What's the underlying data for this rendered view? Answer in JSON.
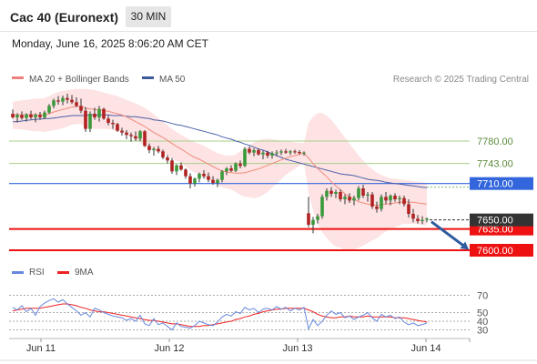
{
  "header": {
    "title": "Cac 40 (Euronext)",
    "interval": "30 MIN",
    "datetime": "Monday, June 16, 2025 8:06:20 AM CET"
  },
  "legend": {
    "items": [
      {
        "name": "MA 20 + Bollinger Bands",
        "color": "#f08080"
      },
      {
        "name": "MA 50",
        "color": "#3a5a9a"
      }
    ],
    "credit": "Research © 2025 Trading Central"
  },
  "colors": {
    "bull": "#3a9a3a",
    "bear": "#b22222",
    "ma20": "#f08a7a",
    "ma50": "#4a5ea8",
    "bands": "#fde3e3",
    "support": "#ee1111",
    "pivot": "#3366dd",
    "resistance": "#a8d08a",
    "arrow": "#2f5c9e",
    "rsi": "#6688dd",
    "rsi_ma": "#ee2222"
  },
  "chart_data": [
    {
      "type": "candlestick",
      "x_ticks": [
        "Jun 11",
        "Jun 12",
        "Jun 13",
        "Jun 14"
      ],
      "ylim": [
        7582,
        7882
      ],
      "levels": [
        {
          "value": 7780.0,
          "label": "7780.00",
          "kind": "resistance"
        },
        {
          "value": 7743.0,
          "label": "7743.00",
          "kind": "resistance"
        },
        {
          "value": 7710.0,
          "label": "7710.00",
          "kind": "pivot"
        },
        {
          "value": 7635.0,
          "label": "7635.00",
          "kind": "support"
        },
        {
          "value": 7600.0,
          "label": "7600.00",
          "kind": "support"
        }
      ],
      "last_price": {
        "value": 7650.0,
        "label": "7650.00"
      },
      "candles": [
        [
          7825,
          7832,
          7817,
          7819
        ],
        [
          7819,
          7826,
          7811,
          7823
        ],
        [
          7823,
          7829,
          7815,
          7818
        ],
        [
          7818,
          7826,
          7812,
          7824
        ],
        [
          7824,
          7830,
          7816,
          7819
        ],
        [
          7819,
          7826,
          7811,
          7823
        ],
        [
          7823,
          7828,
          7815,
          7819
        ],
        [
          7819,
          7830,
          7816,
          7827
        ],
        [
          7827,
          7841,
          7825,
          7838
        ],
        [
          7838,
          7850,
          7834,
          7847
        ],
        [
          7847,
          7854,
          7840,
          7845
        ],
        [
          7845,
          7855,
          7839,
          7851
        ],
        [
          7851,
          7858,
          7842,
          7848
        ],
        [
          7848,
          7856,
          7841,
          7844
        ],
        [
          7844,
          7852,
          7836,
          7838
        ],
        [
          7838,
          7850,
          7826,
          7830
        ],
        [
          7830,
          7836,
          7795,
          7800
        ],
        [
          7800,
          7829,
          7795,
          7825
        ],
        [
          7825,
          7835,
          7815,
          7819
        ],
        [
          7819,
          7838,
          7812,
          7833
        ],
        [
          7833,
          7835,
          7815,
          7817
        ],
        [
          7817,
          7822,
          7806,
          7810
        ],
        [
          7810,
          7815,
          7800,
          7808
        ],
        [
          7808,
          7810,
          7795,
          7797
        ],
        [
          7797,
          7802,
          7789,
          7794
        ],
        [
          7794,
          7798,
          7783,
          7790
        ],
        [
          7790,
          7794,
          7779,
          7788
        ],
        [
          7788,
          7796,
          7780,
          7784
        ],
        [
          7784,
          7798,
          7780,
          7796
        ],
        [
          7796,
          7798,
          7770,
          7772
        ],
        [
          7772,
          7776,
          7760,
          7765
        ],
        [
          7765,
          7770,
          7756,
          7767
        ],
        [
          7767,
          7772,
          7760,
          7763
        ],
        [
          7763,
          7766,
          7750,
          7753
        ],
        [
          7753,
          7757,
          7743,
          7748
        ],
        [
          7748,
          7752,
          7726,
          7730
        ],
        [
          7730,
          7742,
          7724,
          7740
        ],
        [
          7740,
          7745,
          7731,
          7733
        ],
        [
          7733,
          7735,
          7718,
          7722
        ],
        [
          7722,
          7727,
          7702,
          7710
        ],
        [
          7710,
          7720,
          7705,
          7718
        ],
        [
          7718,
          7728,
          7712,
          7726
        ],
        [
          7726,
          7732,
          7718,
          7722
        ],
        [
          7722,
          7728,
          7712,
          7716
        ],
        [
          7716,
          7722,
          7708,
          7711
        ],
        [
          7711,
          7718,
          7704,
          7716
        ],
        [
          7716,
          7732,
          7712,
          7730
        ],
        [
          7730,
          7737,
          7724,
          7735
        ],
        [
          7735,
          7740,
          7729,
          7731
        ],
        [
          7731,
          7745,
          7729,
          7743
        ],
        [
          7743,
          7748,
          7735,
          7739
        ],
        [
          7739,
          7770,
          7737,
          7767
        ],
        [
          7767,
          7771,
          7758,
          7761
        ],
        [
          7761,
          7768,
          7755,
          7765
        ],
        [
          7765,
          7768,
          7756,
          7758
        ],
        [
          7758,
          7764,
          7750,
          7761
        ],
        [
          7761,
          7764,
          7752,
          7756
        ],
        [
          7756,
          7763,
          7751,
          7760
        ],
        [
          7760,
          7765,
          7755,
          7761
        ],
        [
          7761,
          7766,
          7757,
          7763
        ],
        [
          7763,
          7767,
          7759,
          7761
        ],
        [
          7761,
          7765,
          7757,
          7763
        ],
        [
          7763,
          7766,
          7759,
          7762
        ],
        [
          7762,
          7765,
          7758,
          7760
        ],
        [
          7760,
          7763,
          7756,
          7761
        ],
        [
          7661,
          7688,
          7638,
          7642
        ],
        [
          7642,
          7655,
          7628,
          7650
        ],
        [
          7650,
          7660,
          7644,
          7656
        ],
        [
          7656,
          7692,
          7652,
          7688
        ],
        [
          7688,
          7702,
          7682,
          7698
        ],
        [
          7698,
          7704,
          7688,
          7693
        ],
        [
          7693,
          7700,
          7686,
          7696
        ],
        [
          7696,
          7700,
          7680,
          7684
        ],
        [
          7684,
          7692,
          7676,
          7688
        ],
        [
          7688,
          7694,
          7678,
          7682
        ],
        [
          7682,
          7690,
          7674,
          7686
        ],
        [
          7686,
          7706,
          7682,
          7702
        ],
        [
          7702,
          7708,
          7686,
          7690
        ],
        [
          7690,
          7696,
          7680,
          7692
        ],
        [
          7692,
          7696,
          7668,
          7672
        ],
        [
          7672,
          7680,
          7662,
          7668
        ],
        [
          7668,
          7692,
          7664,
          7688
        ],
        [
          7688,
          7696,
          7676,
          7682
        ],
        [
          7682,
          7692,
          7674,
          7690
        ],
        [
          7690,
          7694,
          7680,
          7684
        ],
        [
          7684,
          7690,
          7676,
          7686
        ],
        [
          7686,
          7690,
          7672,
          7676
        ],
        [
          7676,
          7684,
          7654,
          7660
        ],
        [
          7660,
          7668,
          7646,
          7652
        ],
        [
          7652,
          7658,
          7644,
          7648
        ],
        [
          7648,
          7656,
          7643,
          7650
        ],
        [
          7650,
          7654,
          7646,
          7652
        ]
      ],
      "ma20": [
        7823,
        7823,
        7823,
        7823,
        7823,
        7823,
        7823,
        7823,
        7825,
        7828,
        7830,
        7832,
        7834,
        7836,
        7837,
        7837,
        7834,
        7833,
        7832,
        7831,
        7830,
        7829,
        7827,
        7825,
        7823,
        7820,
        7816,
        7812,
        7808,
        7804,
        7799,
        7794,
        7790,
        7786,
        7781,
        7776,
        7771,
        7767,
        7762,
        7757,
        7753,
        7750,
        7746,
        7742,
        7738,
        7734,
        7731,
        7729,
        7728,
        7727,
        7727,
        7728,
        7730,
        7732,
        7734,
        7737,
        7740,
        7743,
        7746,
        7749,
        7752,
        7754,
        7756,
        7758,
        7760,
        7752,
        7743,
        7735,
        7728,
        7721,
        7713,
        7706,
        7700,
        7693,
        7688,
        7684,
        7680,
        7678,
        7676,
        7675,
        7674,
        7675,
        7676,
        7677,
        7678,
        7679,
        7680,
        7679,
        7679,
        7678,
        7677,
        7676
      ],
      "ma50": [
        7812,
        7812,
        7813,
        7814,
        7815,
        7816,
        7816,
        7817,
        7817,
        7818,
        7819,
        7820,
        7821,
        7822,
        7822,
        7822,
        7822,
        7823,
        7823,
        7823,
        7823,
        7823,
        7822,
        7822,
        7822,
        7821,
        7820,
        7820,
        7819,
        7818,
        7817,
        7815,
        7814,
        7813,
        7811,
        7809,
        7807,
        7806,
        7804,
        7802,
        7800,
        7798,
        7796,
        7794,
        7792,
        7790,
        7787,
        7785,
        7783,
        7780,
        7778,
        7775,
        7773,
        7770,
        7767,
        7765,
        7762,
        7759,
        7756,
        7753,
        7750,
        7748,
        7746,
        7744,
        7742,
        7740,
        7738,
        7736,
        7734,
        7732,
        7730,
        7728,
        7726,
        7725,
        7724,
        7723,
        7721,
        7719,
        7717,
        7716,
        7715,
        7714,
        7712,
        7711,
        7710,
        7709,
        7708,
        7707,
        7706,
        7705,
        7704,
        7703
      ],
      "bb_upper": [
        7845,
        7846,
        7847,
        7848,
        7849,
        7850,
        7850,
        7851,
        7854,
        7858,
        7861,
        7863,
        7864,
        7865,
        7866,
        7866,
        7866,
        7865,
        7864,
        7862,
        7860,
        7858,
        7856,
        7854,
        7851,
        7848,
        7845,
        7842,
        7839,
        7835,
        7830,
        7824,
        7818,
        7812,
        7806,
        7800,
        7795,
        7790,
        7786,
        7782,
        7778,
        7775,
        7772,
        7768,
        7764,
        7760,
        7758,
        7756,
        7756,
        7758,
        7763,
        7768,
        7773,
        7778,
        7781,
        7783,
        7784,
        7783,
        7782,
        7781,
        7780,
        7779,
        7778,
        7777,
        7777,
        7810,
        7820,
        7826,
        7826,
        7822,
        7815,
        7806,
        7796,
        7786,
        7776,
        7766,
        7756,
        7748,
        7740,
        7734,
        7728,
        7724,
        7721,
        7719,
        7718,
        7717,
        7716,
        7715,
        7714,
        7713,
        7712,
        7711
      ],
      "bb_lower": [
        7800,
        7800,
        7799,
        7798,
        7797,
        7796,
        7796,
        7795,
        7796,
        7798,
        7799,
        7801,
        7804,
        7807,
        7808,
        7808,
        7802,
        7801,
        7800,
        7800,
        7800,
        7800,
        7798,
        7796,
        7795,
        7792,
        7787,
        7782,
        7777,
        7773,
        7768,
        7764,
        7762,
        7760,
        7756,
        7752,
        7747,
        7744,
        7738,
        7732,
        7728,
        7725,
        7720,
        7716,
        7712,
        7708,
        7704,
        7702,
        7700,
        7696,
        7691,
        7688,
        7687,
        7686,
        7687,
        7691,
        7696,
        7703,
        7710,
        7717,
        7724,
        7729,
        7734,
        7739,
        7743,
        7694,
        7666,
        7644,
        7630,
        7620,
        7612,
        7606,
        7604,
        7600,
        7600,
        7602,
        7604,
        7608,
        7612,
        7616,
        7620,
        7626,
        7631,
        7635,
        7638,
        7641,
        7644,
        7643,
        7644,
        7643,
        7642,
        7641
      ]
    },
    {
      "type": "line",
      "title": "RSI",
      "series": [
        {
          "name": "RSI",
          "values": [
            56,
            53,
            58,
            51,
            55,
            47,
            57,
            61,
            64,
            66,
            62,
            65,
            60,
            56,
            52,
            47,
            50,
            45,
            55,
            53,
            50,
            48,
            46,
            45,
            44,
            41,
            43,
            40,
            47,
            37,
            35,
            43,
            36,
            38,
            34,
            30,
            38,
            34,
            33,
            32,
            35,
            40,
            38,
            36,
            35,
            39,
            45,
            48,
            46,
            51,
            49,
            56,
            53,
            55,
            50,
            54,
            55,
            53,
            57,
            54,
            56,
            52,
            55,
            53,
            56,
            31,
            42,
            35,
            40,
            47,
            52,
            48,
            50,
            44,
            46,
            42,
            45,
            47,
            50,
            44,
            40,
            48,
            45,
            47,
            43,
            45,
            39,
            36,
            38,
            35,
            36,
            38
          ]
        },
        {
          "name": "9MA",
          "values": [
            52,
            53,
            54,
            55,
            55,
            55,
            55,
            56,
            57,
            58,
            59,
            60,
            60,
            59,
            58,
            56,
            55,
            53,
            52,
            51,
            51,
            50,
            49,
            48,
            47,
            46,
            45,
            44,
            43,
            42,
            41,
            41,
            40,
            39,
            38,
            37,
            37,
            36,
            35,
            34,
            34,
            34,
            35,
            35,
            36,
            37,
            38,
            39,
            40,
            42,
            43,
            45,
            46,
            48,
            49,
            51,
            52,
            53,
            54,
            54,
            55,
            55,
            55,
            55,
            55,
            53,
            51,
            48,
            46,
            45,
            44,
            44,
            45,
            45,
            46,
            45,
            45,
            45,
            46,
            45,
            45,
            45,
            45,
            45,
            44,
            44,
            44,
            43,
            42,
            41,
            40,
            39
          ]
        }
      ],
      "y_ticks": [
        "70",
        "50",
        "40",
        "30"
      ],
      "ylim": [
        20,
        80
      ]
    }
  ]
}
